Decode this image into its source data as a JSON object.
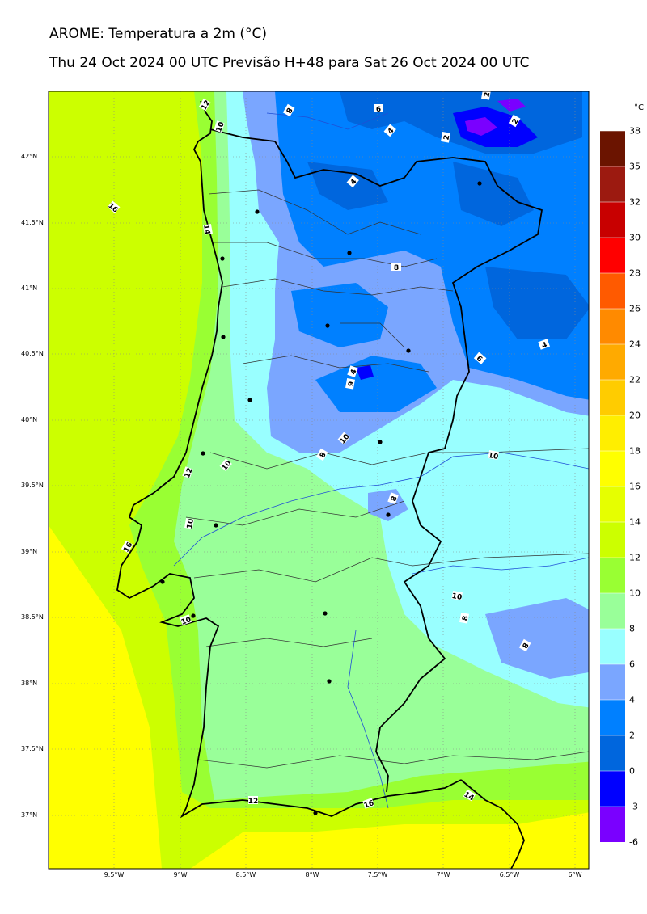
{
  "header": {
    "title": "AROME: Temperatura a 2m (°C)",
    "subtitle": "Thu 24 Oct 2024 00 UTC Previsão H+48 para Sat 26 Oct 2024 00 UTC"
  },
  "axes": {
    "lat_labels": [
      "42°N",
      "41.5°N",
      "41°N",
      "40.5°N",
      "40°N",
      "39.5°N",
      "39°N",
      "38.5°N",
      "38°N",
      "37.5°N",
      "37°N"
    ],
    "lon_labels": [
      "9.5°W",
      "9°W",
      "8.5°W",
      "8°W",
      "7.5°W",
      "7°W",
      "6.5°W",
      "6°W"
    ]
  },
  "colorbar": {
    "unit": "°C",
    "levels": [
      "38",
      "35",
      "32",
      "30",
      "28",
      "26",
      "24",
      "22",
      "20",
      "18",
      "16",
      "14",
      "12",
      "10",
      "8",
      "6",
      "4",
      "2",
      "0",
      "-3",
      "-6"
    ],
    "colors": [
      "#6b1400",
      "#9c1a10",
      "#c80000",
      "#ff0000",
      "#ff5a00",
      "#ff8a00",
      "#ffaa00",
      "#ffcc00",
      "#ffee00",
      "#ffff00",
      "#e6ff00",
      "#ccff00",
      "#99ff33",
      "#99ff99",
      "#99ffff",
      "#7aa6ff",
      "#0080ff",
      "#0066dd",
      "#0000ff",
      "#7a00ff",
      "#dd00ff"
    ]
  },
  "contour_labels": [
    "12",
    "10",
    "8",
    "6",
    "4",
    "2",
    "2",
    "2",
    "4",
    "16",
    "14",
    "8",
    "4",
    "6",
    "4",
    "9",
    "10",
    "8",
    "10",
    "12",
    "10",
    "10",
    "8",
    "10",
    "16",
    "10",
    "8",
    "8",
    "12",
    "16",
    "14"
  ]
}
